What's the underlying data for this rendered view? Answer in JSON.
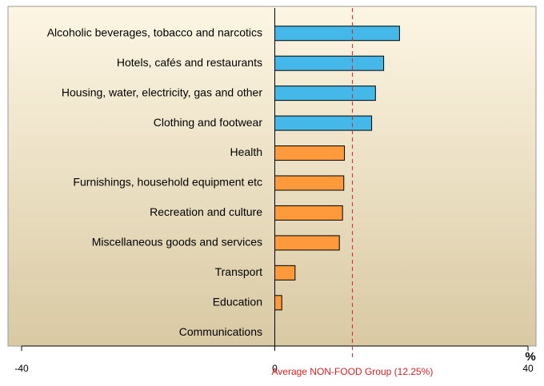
{
  "chart_data": {
    "type": "bar",
    "orientation": "horizontal",
    "categories": [
      "Alcoholic beverages, tobacco and narcotics",
      "Hotels, cafés and restaurants",
      "Housing, water, electricity, gas and other",
      "Clothing and footwear",
      "Health",
      "Furnishings, household equipment etc",
      "Recreation and culture",
      "Miscellaneous goods and services",
      "Transport",
      "Education",
      "Communications"
    ],
    "values": [
      19.7,
      17.2,
      15.9,
      15.3,
      11.0,
      10.9,
      10.7,
      10.2,
      3.2,
      1.1,
      0
    ],
    "colors": [
      "#45b8ea",
      "#45b8ea",
      "#45b8ea",
      "#45b8ea",
      "#ff9a3c",
      "#ff9a3c",
      "#ff9a3c",
      "#ff9a3c",
      "#ff9a3c",
      "#ff9a3c",
      "#ff9a3c"
    ],
    "xlim": [
      -40,
      40
    ],
    "xticks": [
      -40,
      0,
      40
    ],
    "x_label": "%",
    "annotation": {
      "label": "Average NON-FOOD Group (12.25%)",
      "value": 12.25,
      "color": "#e02020"
    }
  }
}
